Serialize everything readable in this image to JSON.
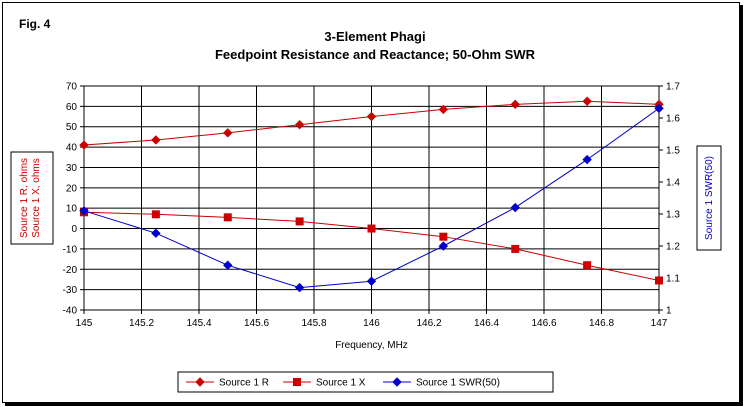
{
  "figure_label": "Fig. 4",
  "chart_data": {
    "type": "line",
    "title": "3-Element Phagi",
    "subtitle": "Feedpoint Resistance and Reactance; 50-Ohm SWR",
    "xlabel": "Frequency, MHz",
    "ylabel_left": [
      "Source 1 R,  ohms",
      "Source 1 X,  ohms"
    ],
    "ylabel_right": "Source 1 SWR(50)",
    "x": [
      145,
      145.25,
      145.5,
      145.75,
      146,
      146.25,
      146.5,
      146.75,
      147
    ],
    "xlim": [
      145,
      147
    ],
    "x_ticks": [
      "145",
      "145.2",
      "145.4",
      "145.6",
      "145.8",
      "146",
      "146.2",
      "146.4",
      "146.6",
      "146.8",
      "147"
    ],
    "ylim_left": [
      -40,
      70
    ],
    "y_ticks_left": [
      "70",
      "60",
      "50",
      "40",
      "30",
      "20",
      "10",
      "0",
      "-10",
      "-20",
      "-30",
      "-40"
    ],
    "ylim_right": [
      1,
      1.7
    ],
    "y_ticks_right": [
      "1.7",
      "1.6",
      "1.5",
      "1.4",
      "1.3",
      "1.2",
      "1.1",
      "1"
    ],
    "grid": true,
    "legend_position": "bottom",
    "series": [
      {
        "name": "Source 1 R",
        "axis": "left",
        "marker": "diamond",
        "color": "#cc0000",
        "values": [
          41,
          43.5,
          47,
          51,
          55,
          58.5,
          61,
          62.5,
          61
        ]
      },
      {
        "name": "Source 1 X",
        "axis": "left",
        "marker": "square",
        "color": "#cc0000",
        "values": [
          8,
          7,
          5.5,
          3.5,
          0,
          -4,
          -10,
          -18,
          -25.5
        ]
      },
      {
        "name": "Source 1 SWR(50)",
        "axis": "right",
        "marker": "diamond",
        "color": "#0000cc",
        "values": [
          1.31,
          1.24,
          1.14,
          1.07,
          1.09,
          1.2,
          1.32,
          1.47,
          1.63
        ]
      }
    ],
    "left_axis_color": "#cc0000",
    "right_axis_color": "#0000cc"
  }
}
